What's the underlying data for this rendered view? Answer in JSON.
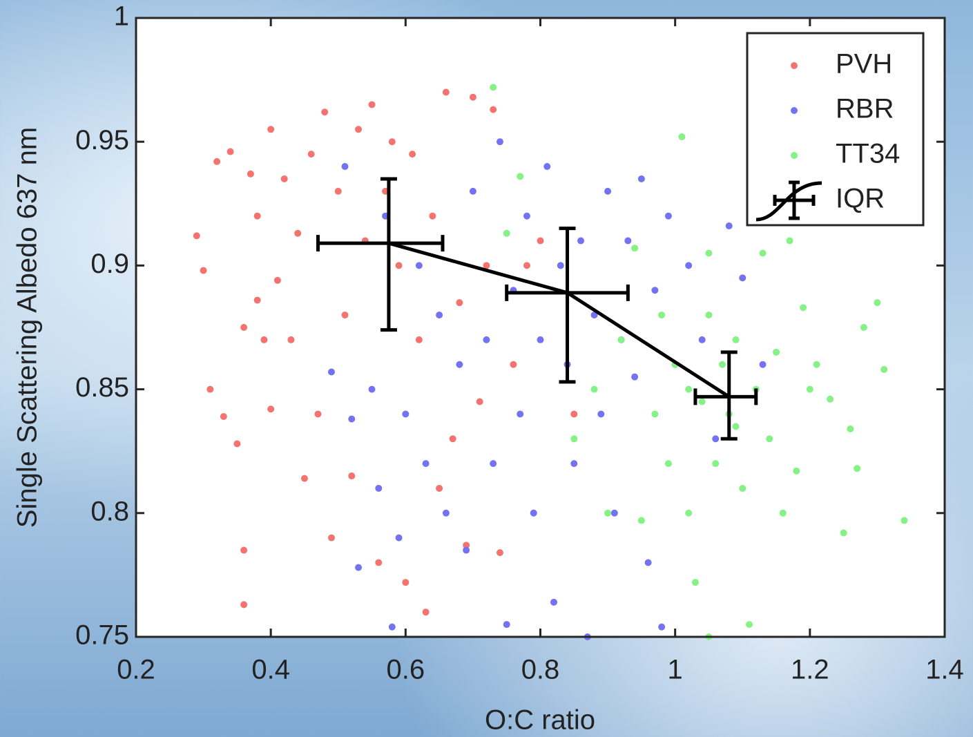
{
  "chart_data": {
    "type": "scatter",
    "xlabel": "O:C ratio",
    "ylabel": "Single Scattering Albedo 637 nm",
    "xlim": [
      0.2,
      1.4
    ],
    "ylim": [
      0.75,
      1
    ],
    "xticks": [
      0.2,
      0.4,
      0.6,
      0.8,
      1,
      1.2,
      1.4
    ],
    "yticks": [
      0.75,
      0.8,
      0.85,
      0.9,
      0.95,
      1
    ],
    "legend": "upper right",
    "series": [
      {
        "name": "PVH",
        "color": "#f4736f",
        "x": [
          0.29,
          0.3,
          0.31,
          0.32,
          0.33,
          0.34,
          0.35,
          0.36,
          0.36,
          0.36,
          0.37,
          0.38,
          0.38,
          0.39,
          0.4,
          0.4,
          0.41,
          0.42,
          0.43,
          0.44,
          0.45,
          0.46,
          0.47,
          0.48,
          0.49,
          0.5,
          0.51,
          0.52,
          0.53,
          0.54,
          0.55,
          0.56,
          0.57,
          0.58,
          0.59,
          0.6,
          0.61,
          0.62,
          0.63,
          0.64,
          0.65,
          0.66,
          0.67,
          0.68,
          0.69,
          0.7,
          0.71,
          0.72,
          0.73,
          0.74,
          0.76,
          0.78,
          0.8,
          0.85
        ],
        "y": [
          0.912,
          0.898,
          0.85,
          0.942,
          0.839,
          0.946,
          0.828,
          0.875,
          0.785,
          0.763,
          0.937,
          0.886,
          0.92,
          0.87,
          0.955,
          0.842,
          0.894,
          0.935,
          0.87,
          0.913,
          0.814,
          0.945,
          0.84,
          0.962,
          0.79,
          0.93,
          0.88,
          0.815,
          0.955,
          0.91,
          0.965,
          0.78,
          0.93,
          0.95,
          0.9,
          0.772,
          0.945,
          0.87,
          0.76,
          0.92,
          0.81,
          0.97,
          0.83,
          0.885,
          0.787,
          0.968,
          0.845,
          0.9,
          0.963,
          0.784,
          0.86,
          0.9,
          0.91,
          0.84
        ]
      },
      {
        "name": "RBR",
        "color": "#7373f2",
        "x": [
          0.49,
          0.51,
          0.52,
          0.53,
          0.55,
          0.56,
          0.57,
          0.58,
          0.59,
          0.6,
          0.62,
          0.63,
          0.65,
          0.66,
          0.68,
          0.69,
          0.7,
          0.72,
          0.73,
          0.74,
          0.75,
          0.76,
          0.77,
          0.78,
          0.79,
          0.8,
          0.81,
          0.82,
          0.83,
          0.84,
          0.85,
          0.86,
          0.87,
          0.88,
          0.89,
          0.9,
          0.91,
          0.92,
          0.93,
          0.94,
          0.95,
          0.96,
          0.97,
          0.98,
          0.99,
          1.0,
          1.02,
          1.04,
          1.06,
          1.08,
          1.1,
          1.13
        ],
        "y": [
          0.857,
          0.94,
          0.838,
          0.778,
          0.85,
          0.81,
          0.92,
          0.754,
          0.79,
          0.84,
          0.9,
          0.82,
          0.88,
          0.8,
          0.86,
          0.785,
          0.93,
          0.87,
          0.82,
          0.95,
          0.755,
          0.89,
          0.84,
          0.92,
          0.8,
          0.87,
          0.94,
          0.764,
          0.9,
          0.86,
          0.82,
          0.91,
          0.75,
          0.88,
          0.84,
          0.93,
          0.8,
          0.87,
          0.91,
          0.855,
          0.935,
          0.78,
          0.89,
          0.754,
          0.92,
          0.86,
          0.9,
          0.87,
          0.83,
          0.916,
          0.895,
          0.86
        ]
      },
      {
        "name": "TT34",
        "color": "#84f284",
        "x": [
          0.73,
          0.75,
          0.77,
          0.85,
          0.88,
          0.9,
          0.92,
          0.94,
          0.95,
          0.97,
          0.98,
          0.99,
          1.0,
          1.01,
          1.02,
          1.03,
          1.04,
          1.05,
          1.05,
          1.06,
          1.07,
          1.08,
          1.09,
          1.1,
          1.11,
          1.12,
          1.13,
          1.14,
          1.15,
          1.16,
          1.17,
          1.18,
          1.19,
          1.2,
          1.21,
          1.23,
          1.25,
          1.26,
          1.27,
          1.28,
          1.3,
          1.31,
          1.34,
          1.05,
          1.02,
          1.09
        ],
        "y": [
          0.972,
          0.913,
          0.936,
          0.83,
          0.85,
          0.8,
          0.87,
          0.907,
          0.797,
          0.84,
          0.88,
          0.82,
          0.86,
          0.952,
          0.8,
          0.772,
          0.845,
          0.75,
          0.88,
          0.82,
          0.86,
          0.84,
          0.87,
          0.81,
          0.755,
          0.85,
          0.905,
          0.83,
          0.865,
          0.8,
          0.91,
          0.817,
          0.883,
          0.85,
          0.86,
          0.846,
          0.792,
          0.834,
          0.818,
          0.875,
          0.885,
          0.858,
          0.797,
          0.905,
          0.85,
          0.835
        ]
      },
      {
        "name": "IQR",
        "color": "#000000",
        "x": [
          0.575,
          0.84,
          1.08
        ],
        "y": [
          0.909,
          0.889,
          0.847
        ],
        "xlow": [
          0.47,
          0.75,
          1.03
        ],
        "xhigh": [
          0.655,
          0.93,
          1.12
        ],
        "ylow": [
          0.874,
          0.853,
          0.83
        ],
        "yhigh": [
          0.935,
          0.915,
          0.865
        ]
      }
    ]
  }
}
